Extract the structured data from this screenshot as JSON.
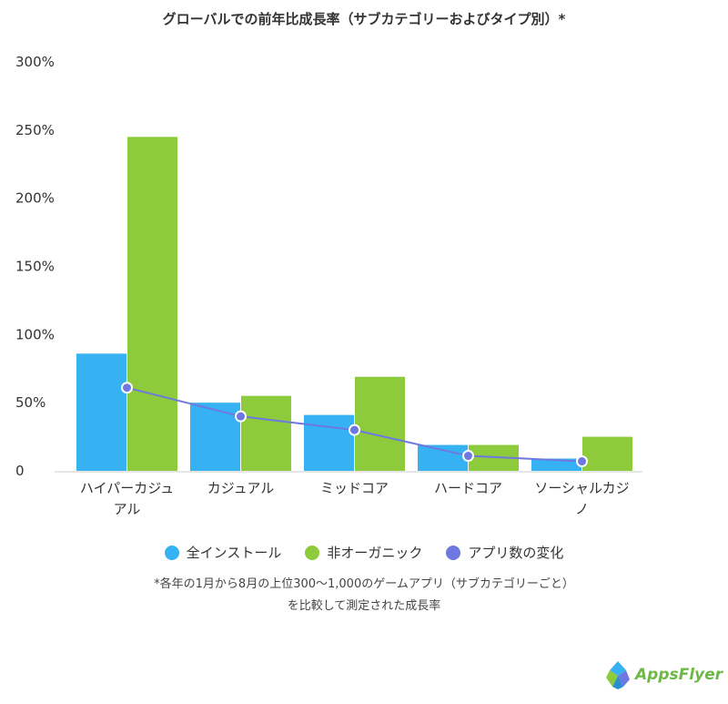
{
  "title": "グローバルでの前年比成長率（サブカテゴリーおよびタイプ別）*",
  "chart_data": {
    "type": "bar",
    "categories": [
      [
        "ハイパーカジュ",
        "アル"
      ],
      [
        "カジュアル"
      ],
      [
        "ミッドコア"
      ],
      [
        "ハードコア"
      ],
      [
        "ソーシャルカジ",
        "ノ"
      ]
    ],
    "series": [
      {
        "name": "全インストール",
        "type": "bar",
        "color": "#36b1f2",
        "values": [
          86,
          50,
          41,
          19,
          9
        ]
      },
      {
        "name": "非オーガニック",
        "type": "bar",
        "color": "#8dcb3c",
        "values": [
          245,
          55,
          69,
          19,
          25
        ]
      },
      {
        "name": "アプリ数の変化",
        "type": "line",
        "color": "#6e78e0",
        "values": [
          61,
          40,
          30,
          11,
          7
        ]
      }
    ],
    "y_ticks": [
      "0",
      "50%",
      "100%",
      "150%",
      "200%",
      "250%",
      "300%"
    ],
    "ylim": [
      0,
      300
    ],
    "grid": false,
    "legend_position": "bottom"
  },
  "footnote": {
    "line1": "*各年の1月から8月の上位300〜1,000のゲームアプリ（サブカテゴリーごと）",
    "line2": "を比較して測定された成長率"
  },
  "logo": {
    "text": "AppsFlyer",
    "color": "#6eb845"
  }
}
